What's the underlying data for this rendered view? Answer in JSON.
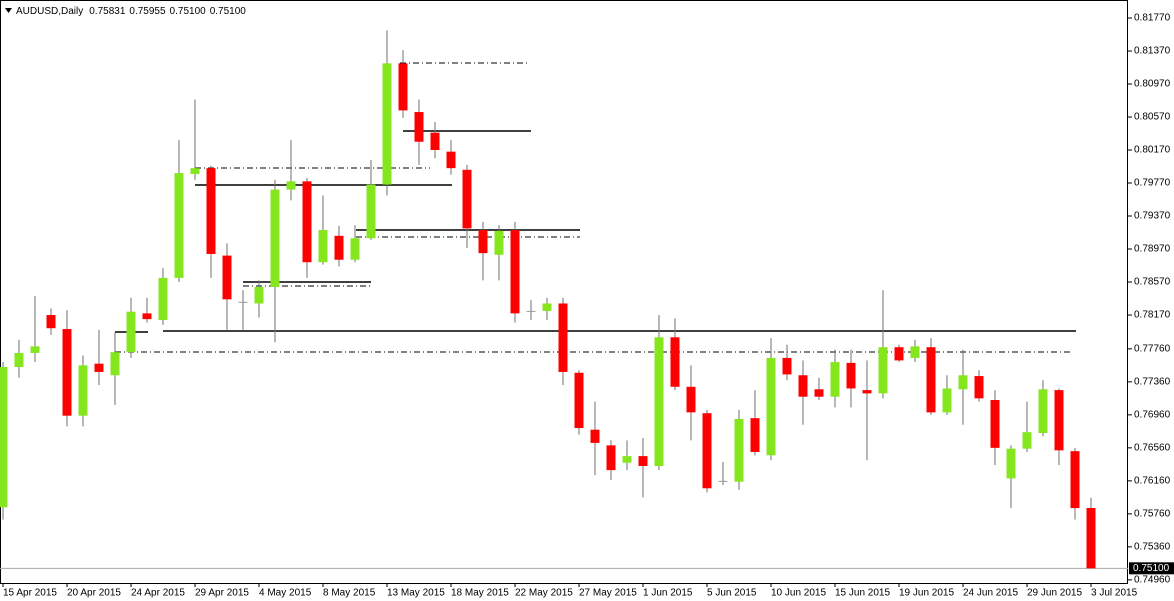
{
  "chart_data": {
    "type": "candlestick",
    "title": "AUDUSD,Daily",
    "info_labels": [
      "0.75831",
      "0.75955",
      "0.75100",
      "0.75100"
    ],
    "categories": [
      "15 Apr 2015",
      null,
      null,
      null,
      "20 Apr 2015",
      null,
      null,
      null,
      "24 Apr 2015",
      null,
      null,
      null,
      "29 Apr 2015",
      null,
      null,
      null,
      "4 May 2015",
      null,
      null,
      null,
      "8 May 2015",
      null,
      null,
      null,
      "13 May 2015",
      null,
      null,
      null,
      "18 May 2015",
      null,
      null,
      null,
      "22 May 2015",
      null,
      null,
      null,
      "27 May 2015",
      null,
      null,
      null,
      "1 Jun 2015",
      null,
      null,
      null,
      "5 Jun 2015",
      null,
      null,
      null,
      "10 Jun 2015",
      null,
      null,
      null,
      "15 Jun 2015",
      null,
      null,
      null,
      "19 Jun 2015",
      null,
      null,
      null,
      "24 Jun 2015",
      null,
      null,
      null,
      "29 Jun 2015",
      null,
      null,
      null,
      "3 Jul 2015"
    ],
    "open": [
      0.7584,
      0.7754,
      0.7771,
      0.7817,
      0.78,
      0.7695,
      0.7758,
      0.7744,
      0.7772,
      0.7819,
      0.7811,
      0.7862,
      0.7988,
      0.7995,
      0.7889,
      0.7833,
      0.7831,
      0.7851,
      0.7969,
      0.7979,
      0.7881,
      0.7913,
      0.7884,
      0.791,
      0.7975,
      0.8122,
      0.8063,
      0.8038,
      0.8015,
      0.7993,
      0.792,
      0.789,
      0.792,
      0.7822,
      0.7822,
      0.7831,
      0.7747,
      0.7678,
      0.7659,
      0.7638,
      0.7646,
      0.7634,
      0.779,
      0.773,
      0.7698,
      0.7616,
      0.7615,
      0.7692,
      0.7647,
      0.7765,
      0.7744,
      0.7727,
      0.7718,
      0.7759,
      0.7726,
      0.7722,
      0.7778,
      0.7765,
      0.7778,
      0.7699,
      0.7727,
      0.7743,
      0.7714,
      0.7619,
      0.7655,
      0.7674,
      0.7726,
      0.7652,
      0.75831
    ],
    "high": [
      0.776,
      0.7787,
      0.784,
      0.7825,
      0.7823,
      0.7768,
      0.7799,
      0.7796,
      0.7838,
      0.7838,
      0.7874,
      0.8029,
      0.8078,
      0.7998,
      0.7904,
      0.7847,
      0.7859,
      0.7981,
      0.8029,
      0.7983,
      0.7962,
      0.7925,
      0.7926,
      0.8005,
      0.8162,
      0.8138,
      0.8078,
      0.8051,
      0.8029,
      0.7999,
      0.793,
      0.7926,
      0.793,
      0.7835,
      0.7838,
      0.7838,
      0.775,
      0.7712,
      0.7665,
      0.7665,
      0.7668,
      0.7817,
      0.7813,
      0.7756,
      0.7702,
      0.7639,
      0.7702,
      0.7726,
      0.7789,
      0.7781,
      0.7762,
      0.7741,
      0.7775,
      0.7775,
      0.7762,
      0.7847,
      0.7781,
      0.7787,
      0.7789,
      0.7744,
      0.7775,
      0.775,
      0.7726,
      0.7659,
      0.7712,
      0.7738,
      0.7728,
      0.7656,
      0.75955
    ],
    "low": [
      0.7569,
      0.7741,
      0.776,
      0.7793,
      0.7682,
      0.7682,
      0.7732,
      0.7708,
      0.7765,
      0.7808,
      0.7805,
      0.7857,
      0.7981,
      0.7862,
      0.7799,
      0.7799,
      0.7814,
      0.7784,
      0.7956,
      0.7862,
      0.7878,
      0.7876,
      0.7881,
      0.7908,
      0.7962,
      0.8056,
      0.7999,
      0.8007,
      0.7987,
      0.7898,
      0.7859,
      0.7859,
      0.7808,
      0.7811,
      0.7811,
      0.7732,
      0.7672,
      0.7623,
      0.7617,
      0.7629,
      0.7596,
      0.7629,
      0.7726,
      0.7665,
      0.7602,
      0.7611,
      0.7605,
      0.7647,
      0.7641,
      0.7738,
      0.7684,
      0.7714,
      0.7705,
      0.7705,
      0.7641,
      0.7716,
      0.776,
      0.776,
      0.7696,
      0.7696,
      0.7684,
      0.7712,
      0.7635,
      0.7583,
      0.7651,
      0.767,
      0.7635,
      0.7569,
      0.751
    ],
    "close": [
      0.7754,
      0.7771,
      0.7779,
      0.7801,
      0.7695,
      0.7756,
      0.7748,
      0.7772,
      0.7821,
      0.7812,
      0.7862,
      0.7989,
      0.7995,
      0.7891,
      0.7836,
      0.7833,
      0.7851,
      0.7969,
      0.7979,
      0.7881,
      0.792,
      0.7884,
      0.791,
      0.7975,
      0.8122,
      0.8065,
      0.8027,
      0.8017,
      0.7995,
      0.7922,
      0.7892,
      0.7919,
      0.7819,
      0.7822,
      0.7831,
      0.7748,
      0.768,
      0.7662,
      0.7629,
      0.7646,
      0.7634,
      0.779,
      0.773,
      0.7699,
      0.7607,
      0.7616,
      0.7691,
      0.7651,
      0.7765,
      0.7745,
      0.7718,
      0.7718,
      0.776,
      0.7728,
      0.7722,
      0.7778,
      0.7762,
      0.7779,
      0.7699,
      0.7728,
      0.7744,
      0.7716,
      0.7656,
      0.7655,
      0.7675,
      0.7727,
      0.7653,
      0.7583,
      0.751
    ],
    "up_color": "#86e61e",
    "down_color": "#ff0000",
    "doji_color": "#9a9a9a",
    "wick_color": "#707070",
    "ylim": [
      0.74922,
      0.81988
    ],
    "yticks": [
      {
        "value": 0.8177,
        "label": "0.81770"
      },
      {
        "value": 0.8137,
        "label": "0.81370"
      },
      {
        "value": 0.8097,
        "label": "0.80970"
      },
      {
        "value": 0.8057,
        "label": "0.80570"
      },
      {
        "value": 0.8017,
        "label": "0.80170"
      },
      {
        "value": 0.7977,
        "label": "0.79770"
      },
      {
        "value": 0.7937,
        "label": "0.79370"
      },
      {
        "value": 0.7897,
        "label": "0.78970"
      },
      {
        "value": 0.7857,
        "label": "0.78570"
      },
      {
        "value": 0.7817,
        "label": "0.78170"
      },
      {
        "value": 0.7776,
        "label": "0.77760"
      },
      {
        "value": 0.7736,
        "label": "0.77360"
      },
      {
        "value": 0.7696,
        "label": "0.76960"
      },
      {
        "value": 0.7656,
        "label": "0.76560"
      },
      {
        "value": 0.7616,
        "label": "0.76160"
      },
      {
        "value": 0.7576,
        "label": "0.75760"
      },
      {
        "value": 0.7536,
        "label": "0.75360"
      },
      {
        "value": 0.7496,
        "label": "0.74960"
      }
    ],
    "current_price": {
      "value": 0.751,
      "label": "0.75100"
    },
    "grid": false
  }
}
